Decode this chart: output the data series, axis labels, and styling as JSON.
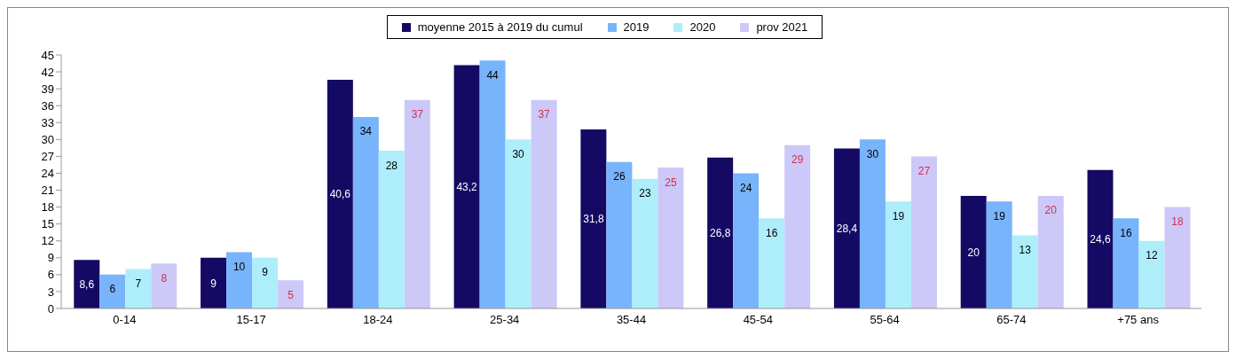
{
  "chart_data": {
    "type": "bar",
    "categories": [
      "0-14",
      "15-17",
      "18-24",
      "25-34",
      "35-44",
      "45-54",
      "55-64",
      "65-74",
      "+75 ans"
    ],
    "series": [
      {
        "name": "moyenne 2015 à 2019 du cumul",
        "color": "#140a64",
        "values": [
          8.6,
          9,
          40.6,
          43.2,
          31.8,
          26.8,
          28.4,
          20,
          24.6
        ],
        "value_labels": [
          "8,6",
          "9",
          "40,6",
          "43,2",
          "31,8",
          "26,8",
          "28,4",
          "20",
          "24,6"
        ]
      },
      {
        "name": "2019",
        "color": "#78b4fc",
        "values": [
          6,
          10,
          34,
          44,
          26,
          24,
          30,
          19,
          16
        ],
        "value_labels": [
          "6",
          "10",
          "34",
          "44",
          "26",
          "24",
          "30",
          "19",
          "16"
        ]
      },
      {
        "name": "2020",
        "color": "#aeeefa",
        "values": [
          7,
          9,
          28,
          30,
          23,
          16,
          19,
          13,
          12
        ],
        "value_labels": [
          "7",
          "9",
          "28",
          "30",
          "23",
          "16",
          "19",
          "13",
          "12"
        ]
      },
      {
        "name": "prov 2021",
        "color": "#ccc8f8",
        "values": [
          8,
          5,
          37,
          37,
          25,
          29,
          27,
          20,
          18
        ],
        "value_labels": [
          "8",
          "5",
          "37",
          "37",
          "25",
          "29",
          "27",
          "20",
          "18"
        ]
      }
    ],
    "ylim": [
      0,
      45
    ],
    "yticks": [
      0,
      3,
      6,
      9,
      12,
      15,
      18,
      21,
      24,
      27,
      30,
      33,
      36,
      39,
      42,
      45
    ],
    "grid": false,
    "legend": "top"
  }
}
